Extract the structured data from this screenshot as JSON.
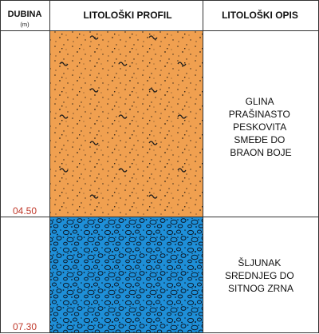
{
  "header": {
    "depth_title": "DUBINA",
    "depth_unit": "(m)",
    "profile_title": "LITOLOŠKI PROFIL",
    "description_title": "LITOLOŠKI OPIS"
  },
  "layers": [
    {
      "bottom_depth_label": "04.50",
      "description_lines": [
        "GLINA",
        "PRAŠINASTO",
        "PESKOVITA",
        "SMEĐE DO",
        "BRAON BOJE"
      ],
      "pattern": "clay-silt-sand",
      "fill_color": "#F0A050"
    },
    {
      "bottom_depth_label": "07.30",
      "description_lines": [
        "ŠLJUNAK",
        "SREDNJEG DO",
        "SITNOG ZRNA"
      ],
      "pattern": "gravel",
      "fill_color": "#1E8FD8"
    }
  ],
  "colors": {
    "depth_label": "#C0392B",
    "line": "#333333",
    "text": "#111111"
  }
}
